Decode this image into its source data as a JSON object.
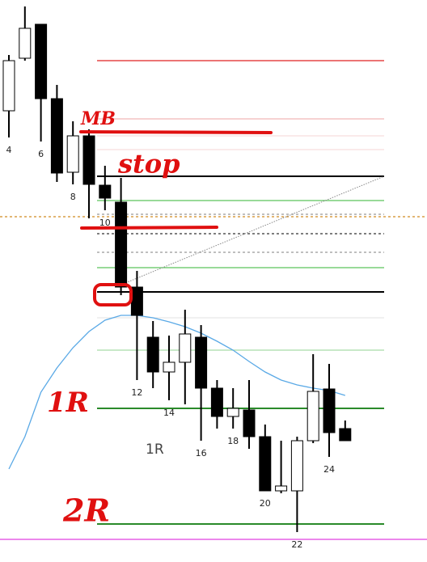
{
  "chart_data": {
    "type": "candlestick",
    "categories": [
      "4",
      null,
      "6",
      null,
      "8",
      null,
      "10",
      null,
      "12",
      null,
      "14",
      null,
      "16",
      null,
      "18",
      null,
      "20",
      null,
      "22",
      null,
      "24",
      null
    ],
    "open": [
      558,
      623,
      665,
      573,
      482,
      527,
      466,
      445,
      340,
      278,
      235,
      247,
      278,
      215,
      180,
      188,
      155,
      88,
      88,
      150,
      214,
      165
    ],
    "close": [
      620,
      660,
      573,
      481,
      527,
      467,
      450,
      340,
      305,
      235,
      247,
      282,
      215,
      180,
      190,
      155,
      88,
      94,
      150,
      211,
      160,
      150
    ],
    "high": [
      627,
      687,
      665,
      590,
      545,
      535,
      490,
      475,
      360,
      298,
      280,
      312,
      293,
      225,
      215,
      225,
      170,
      150,
      155,
      257,
      245,
      175
    ],
    "low": [
      525,
      620,
      520,
      470,
      467,
      425,
      435,
      330,
      225,
      215,
      200,
      195,
      150,
      165,
      165,
      140,
      88,
      85,
      37,
      147,
      130,
      150
    ],
    "colors": {
      "up": "#ffffff",
      "down": "#000000",
      "edge": "#000000"
    },
    "moving_average": {
      "color": "#5aa9e6",
      "values": [
        115,
        155,
        210,
        240,
        265,
        285,
        299,
        305,
        305,
        302,
        297,
        291,
        283,
        273,
        262,
        248,
        235,
        225,
        219,
        215,
        212,
        206
      ]
    },
    "ylim": [
      0,
      695
    ],
    "levels": [
      {
        "value": 620,
        "color": "#e02020",
        "extent": "right"
      },
      {
        "value": 548,
        "color": "#f2b8b8",
        "extent": "right"
      },
      {
        "value": 527,
        "color": "#f7dede",
        "extent": "right"
      },
      {
        "value": 510,
        "color": "#f7dede",
        "extent": "right"
      },
      {
        "value": 477,
        "color": "#000000",
        "extent": "right"
      },
      {
        "value": 447,
        "color": "#5cc45c",
        "extent": "right"
      },
      {
        "value": 430,
        "color": "#999999",
        "extent": "right",
        "dash": true
      },
      {
        "value": 427,
        "color": "#d08a20",
        "extent": "full",
        "dash": true
      },
      {
        "value": 406,
        "color": "#333333",
        "extent": "right",
        "dash": true
      },
      {
        "value": 383,
        "color": "#999999",
        "extent": "right",
        "dash": true
      },
      {
        "value": 364,
        "color": "#5cc45c",
        "extent": "right"
      },
      {
        "value": 334,
        "color": "#000000",
        "extent": "right"
      },
      {
        "value": 302,
        "color": "#e6e6e6",
        "extent": "right"
      },
      {
        "value": 262,
        "color": "#a8dca8",
        "extent": "right"
      },
      {
        "value": 190,
        "color": "#2a8a2a",
        "extent": "right"
      },
      {
        "value": 47,
        "color": "#2a8a2a",
        "extent": "right"
      },
      {
        "value": 28,
        "color": "#e040e0",
        "extent": "full"
      }
    ],
    "annotations": [
      "MB",
      "stop",
      "1R",
      "2R",
      "1R"
    ]
  }
}
